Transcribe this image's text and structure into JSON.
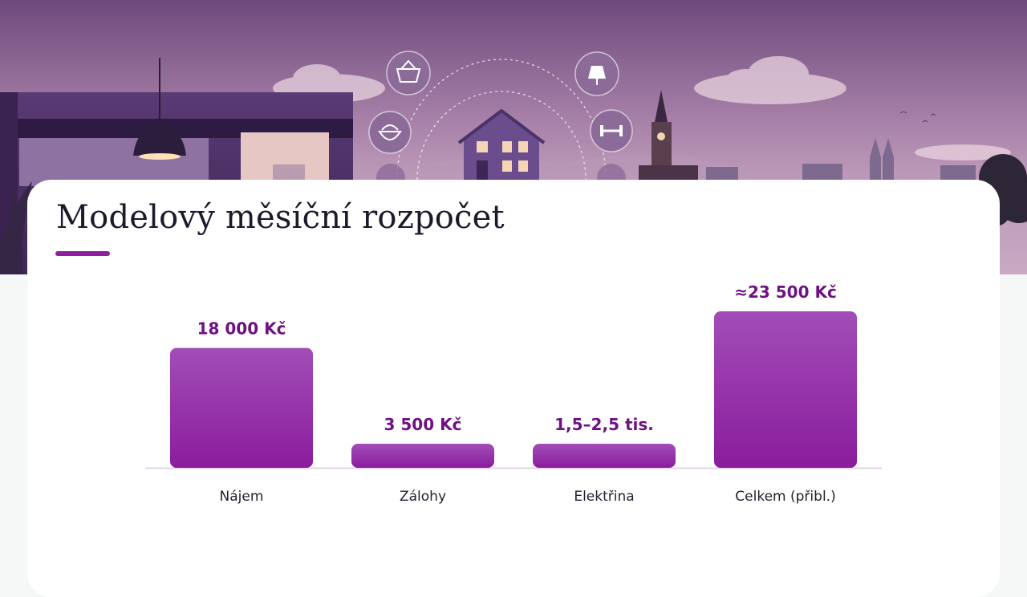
{
  "banner": {
    "scene": "city-skyline-with-household-icons"
  },
  "colors": {
    "accent": "#8e1f9e",
    "bar_top": "#a24db8",
    "bar_bottom": "#8a1c9c",
    "value_text": "#6e1282"
  },
  "icons": [
    "basket-icon",
    "lamp-icon",
    "bowl-icon",
    "dumbbell-icon",
    "house-icon"
  ],
  "card": {
    "title": "Modelový měsíční rozpočet"
  },
  "chart_data": {
    "type": "bar",
    "title": "Modelový měsíční rozpočet",
    "categories": [
      "Nájem",
      "Zálohy",
      "Elektřina",
      "Celkem (přibl.)"
    ],
    "values": [
      18000,
      3500,
      2000,
      23500
    ],
    "value_labels": [
      "18 000 Kč",
      "3 500 Kč",
      "1,5–2,5 tis.",
      "≈23 500 Kč"
    ],
    "xlabel": "",
    "ylabel": "",
    "ylim": [
      0,
      23500
    ],
    "grid": false,
    "legend": "none"
  }
}
